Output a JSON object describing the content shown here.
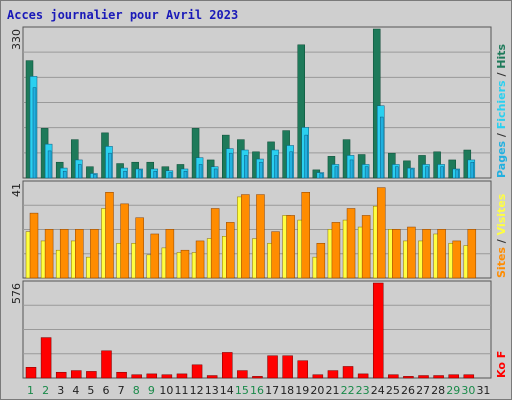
{
  "title": "Acces journalier pour Avril 2023",
  "colors": {
    "background": "#cfcfcf",
    "hits": "#1e7a5a",
    "files": "#2ad0f0",
    "pages": "#21b0e0",
    "visits": "#ff8c00",
    "sites": "#ffff40",
    "kof": "#ff0000",
    "grid": "#9a9a9a",
    "weekend": "#1a8a4a",
    "weekday": "#222222",
    "title": "#1a1ab8"
  },
  "legend": {
    "hits_panel": [
      "Pages",
      "Fichiers",
      "Hits"
    ],
    "visits_panel": [
      "Sites",
      "Visites"
    ],
    "kof_panel": [
      "Ko F"
    ],
    "separator": " / "
  },
  "chart_data": {
    "type": "bar",
    "days": [
      "1",
      "2",
      "3",
      "4",
      "5",
      "6",
      "7",
      "8",
      "9",
      "10",
      "11",
      "12",
      "13",
      "14",
      "15",
      "16",
      "17",
      "18",
      "19",
      "20",
      "21",
      "22",
      "23",
      "24",
      "25",
      "26",
      "27",
      "28",
      "29",
      "30",
      "31"
    ],
    "weekend_days": [
      "1",
      "2",
      "8",
      "9",
      "15",
      "16",
      "22",
      "23",
      "29",
      "30"
    ],
    "panels": [
      {
        "name": "hits-files-pages",
        "ytick_label": "330",
        "ymax": 330,
        "series": [
          {
            "name": "Hits",
            "values": [
              260,
              110,
              35,
              85,
              25,
              100,
              32,
              35,
              35,
              25,
              30,
              110,
              40,
              95,
              85,
              58,
              80,
              105,
              295,
              18,
              48,
              85,
              52,
              330,
              55,
              38,
              50,
              58,
              40,
              62,
              0
            ]
          },
          {
            "name": "Fichiers",
            "values": [
              225,
              75,
              22,
              40,
              10,
              70,
              22,
              20,
              20,
              16,
              20,
              45,
              25,
              65,
              62,
              42,
              62,
              72,
              112,
              12,
              30,
              50,
              30,
              160,
              30,
              22,
              30,
              30,
              20,
              40,
              0
            ]
          },
          {
            "name": "Pages",
            "values": [
              200,
              60,
              15,
              30,
              8,
              55,
              15,
              18,
              15,
              12,
              15,
              30,
              20,
              55,
              50,
              35,
              50,
              58,
              95,
              10,
              25,
              40,
              25,
              135,
              25,
              20,
              25,
              25,
              18,
              35,
              0
            ]
          }
        ]
      },
      {
        "name": "visits-sites",
        "ytick_label": "41",
        "ymax": 41,
        "series": [
          {
            "name": "Visites",
            "values": [
              28,
              21,
              21,
              21,
              21,
              37,
              32,
              26,
              19,
              21,
              12,
              16,
              30,
              24,
              36,
              36,
              20,
              27,
              37,
              15,
              24,
              30,
              27,
              39,
              21,
              22,
              21,
              21,
              16,
              21,
              0
            ]
          },
          {
            "name": "Sites",
            "values": [
              20,
              16,
              12,
              16,
              9,
              30,
              15,
              15,
              10,
              13,
              11,
              11,
              17,
              18,
              35,
              17,
              15,
              27,
              25,
              9,
              21,
              25,
              22,
              31,
              21,
              16,
              16,
              19,
              15,
              14,
              0
            ]
          }
        ]
      },
      {
        "name": "ko-files",
        "ytick_label": "576",
        "ymax": 576,
        "series": [
          {
            "name": "Ko F",
            "values": [
              65,
              245,
              35,
              45,
              40,
              165,
              35,
              20,
              25,
              20,
              25,
              80,
              15,
              155,
              45,
              10,
              135,
              135,
              105,
              20,
              45,
              70,
              25,
              576,
              20,
              10,
              15,
              15,
              20,
              20,
              0
            ]
          }
        ]
      }
    ]
  }
}
